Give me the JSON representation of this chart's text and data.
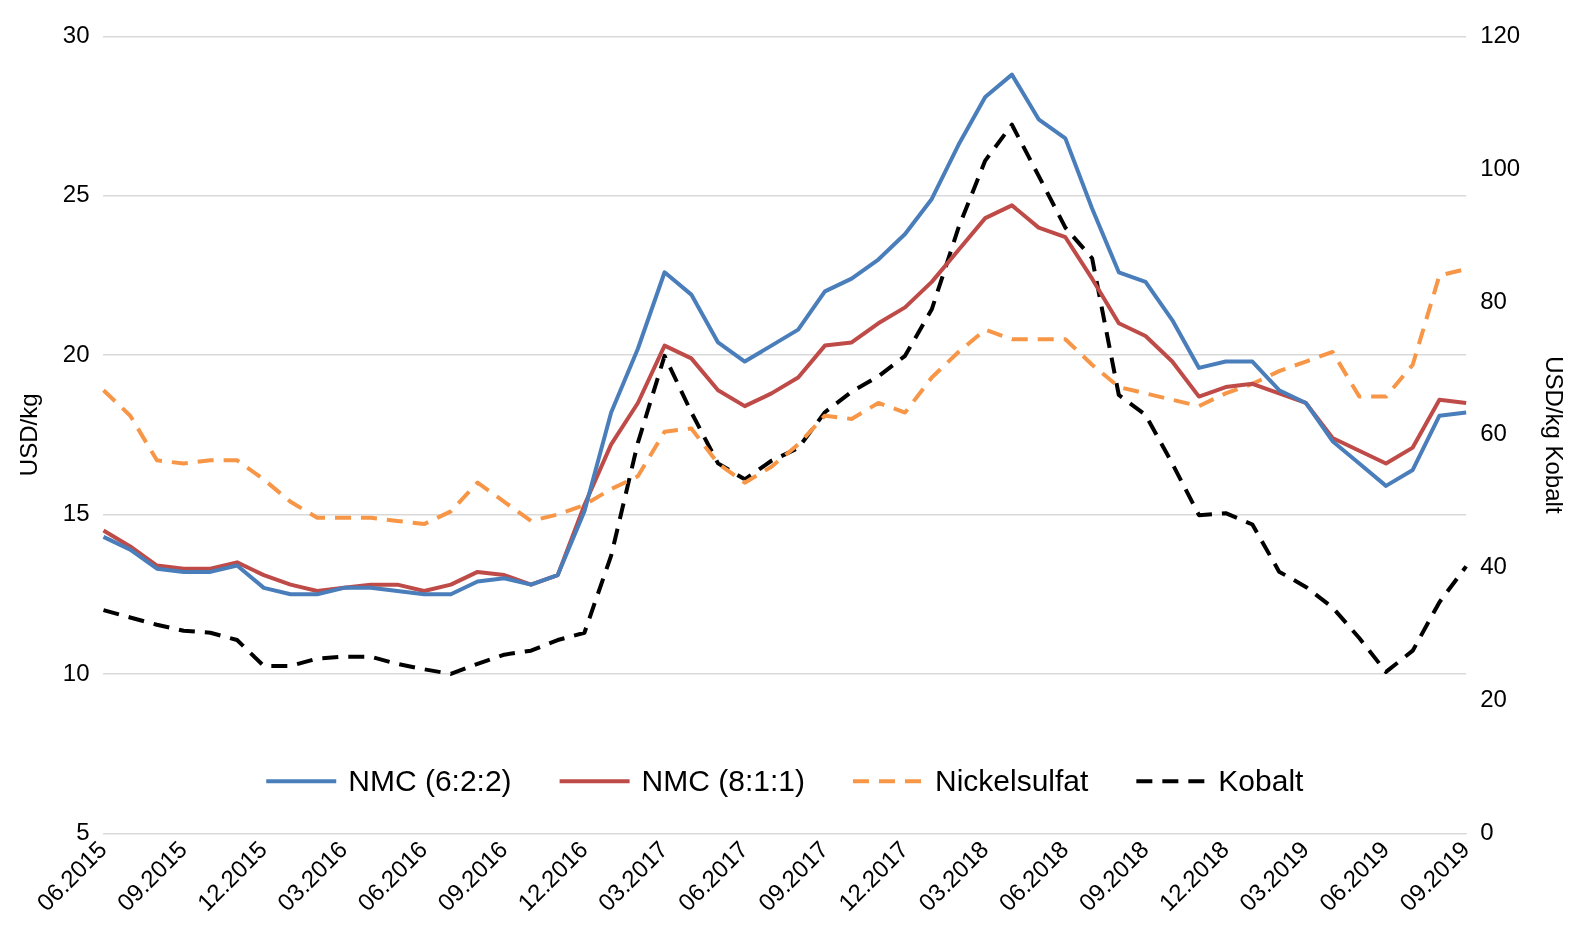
{
  "chart_data": {
    "type": "line",
    "ylabel": "USD/kg",
    "y2label": "USD/kg Kobalt",
    "categories": [
      "06.2015",
      null,
      null,
      "09.2015",
      null,
      null,
      "12.2015",
      null,
      null,
      "03.2016",
      null,
      null,
      "06.2016",
      null,
      null,
      "09.2016",
      null,
      null,
      "12.2016",
      null,
      null,
      "03.2017",
      null,
      null,
      "06.2017",
      null,
      null,
      "09.2017",
      null,
      null,
      "12.2017",
      null,
      null,
      "03.2018",
      null,
      null,
      "06.2018",
      null,
      null,
      "09.2018",
      null,
      null,
      "12.2018",
      null,
      null,
      "03.2019",
      null,
      null,
      "06.2019",
      null,
      null,
      "09.2019"
    ],
    "series": [
      {
        "name": "NMC (6:2:2)",
        "color": "#4a7ebb",
        "line_style": "solid",
        "values": [
          14.3,
          13.9,
          13.3,
          13.2,
          13.2,
          13.4,
          12.7,
          12.5,
          12.5,
          12.7,
          12.7,
          12.6,
          12.5,
          12.5,
          12.9,
          13.0,
          12.8,
          13.1,
          15.1,
          18.2,
          20.2,
          22.6,
          21.9,
          20.4,
          19.8,
          20.3,
          20.8,
          22.0,
          22.4,
          23.0,
          23.8,
          24.9,
          26.6,
          28.1,
          28.8,
          27.4,
          26.8,
          24.6,
          22.6,
          22.3,
          21.1,
          19.6,
          19.8,
          19.8,
          18.9,
          18.5,
          17.3,
          16.6,
          15.9,
          16.4,
          18.1,
          18.2
        ]
      },
      {
        "name": "NMC (8:1:1)",
        "color": "#be4b48",
        "line_style": "solid",
        "values": [
          14.5,
          14.0,
          13.4,
          13.3,
          13.3,
          13.5,
          13.1,
          12.8,
          12.6,
          12.7,
          12.8,
          12.8,
          12.6,
          12.8,
          13.2,
          13.1,
          12.8,
          13.1,
          15.3,
          17.2,
          18.5,
          20.3,
          19.9,
          18.9,
          18.4,
          18.8,
          19.3,
          20.3,
          20.4,
          21.0,
          21.5,
          22.3,
          23.3,
          24.3,
          24.7,
          24.0,
          23.7,
          22.4,
          21.0,
          20.6,
          19.8,
          18.7,
          19.0,
          19.1,
          18.8,
          18.5,
          17.4,
          17.0,
          16.6,
          17.1,
          18.6,
          18.5
        ]
      },
      {
        "name": "Nickelsulfat",
        "color": "#f79646",
        "line_style": "dashed",
        "values": [
          18.9,
          18.1,
          16.7,
          16.6,
          16.7,
          16.7,
          16.1,
          15.4,
          14.9,
          14.9,
          14.9,
          14.8,
          14.7,
          15.1,
          16.0,
          15.4,
          14.8,
          15.0,
          15.3,
          15.8,
          16.2,
          17.6,
          17.7,
          16.6,
          16.0,
          16.5,
          17.2,
          18.1,
          18.0,
          18.5,
          18.2,
          19.3,
          20.1,
          20.8,
          20.5,
          20.5,
          20.5,
          19.7,
          19.0,
          18.8,
          18.6,
          18.4,
          18.8,
          19.1,
          19.5,
          19.8,
          20.1,
          18.7,
          18.7,
          19.7,
          22.5,
          22.7
        ]
      },
      {
        "name": "Kobalt",
        "color": "#000000",
        "line_style": "dashed",
        "axis": "y2",
        "values": [
          33.6,
          32.5,
          31.4,
          30.5,
          30.2,
          29.1,
          25.2,
          25.2,
          26.3,
          26.6,
          26.6,
          25.5,
          24.7,
          24.0,
          25.5,
          26.9,
          27.5,
          29.1,
          30.2,
          41.8,
          58.8,
          71.9,
          63.4,
          55.7,
          53.3,
          56.1,
          58.0,
          63.4,
          66.5,
          68.8,
          71.9,
          78.9,
          91.2,
          101.3,
          106.7,
          99.0,
          91.2,
          86.6,
          66.0,
          63.0,
          55.7,
          47.9,
          48.2,
          46.5,
          39.4,
          37.1,
          34.0,
          29.4,
          24.3,
          27.5,
          34.8,
          40.2
        ]
      }
    ],
    "ylim": [
      5,
      30
    ],
    "yticks": [
      5,
      10,
      15,
      20,
      25,
      30
    ],
    "y2lim": [
      0,
      120
    ],
    "y2ticks": [
      0,
      20,
      40,
      60,
      80,
      100,
      120
    ],
    "grid": "y",
    "legend": "bottom",
    "marker": "none"
  }
}
